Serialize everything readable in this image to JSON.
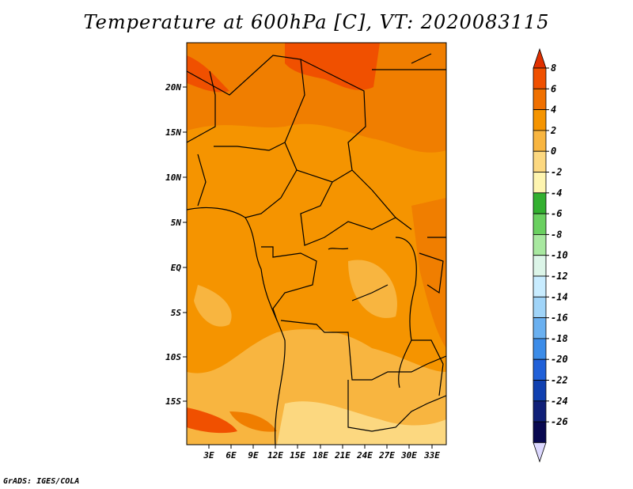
{
  "title": "Temperature at 600hPa [C], VT: 2020083115",
  "footer": "GrADS: IGES/COLA",
  "map": {
    "lat_labels": [
      "20N",
      "15N",
      "10N",
      "5N",
      "EQ",
      "5S",
      "10S",
      "15S"
    ],
    "lon_labels": [
      "3E",
      "6E",
      "9E",
      "12E",
      "15E",
      "18E",
      "21E",
      "24E",
      "27E",
      "30E",
      "33E"
    ]
  },
  "colorbar": {
    "levels": [
      "8",
      "6",
      "4",
      "2",
      "0",
      "-2",
      "-4",
      "-6",
      "-8",
      "-10",
      "-12",
      "-14",
      "-16",
      "-18",
      "-20",
      "-22",
      "-24",
      "-26"
    ],
    "colors": [
      "#e03000",
      "#f05000",
      "#f07000",
      "#f59400",
      "#f8b540",
      "#fcd880",
      "#fef5b0",
      "#33b030",
      "#6ad060",
      "#a8e8a0",
      "#dcf5e8",
      "#c8ecff",
      "#a0d4f8",
      "#6ab0f0",
      "#3c8ce8",
      "#2060d8",
      "#1040b0",
      "#102078",
      "#080850",
      "#dcd8ff"
    ]
  }
}
